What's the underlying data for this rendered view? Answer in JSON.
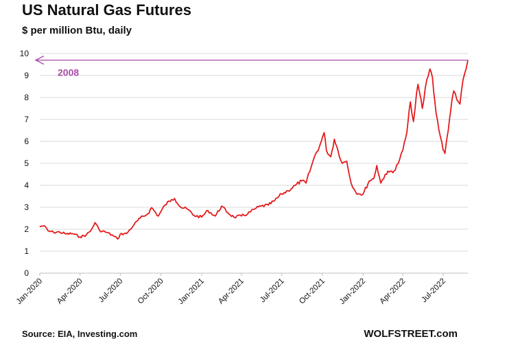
{
  "chart_data": {
    "type": "line",
    "title": "US Natural Gas Futures",
    "subtitle": "$ per million Btu, daily",
    "ylim": [
      0,
      10
    ],
    "y_ticks": [
      0,
      1,
      2,
      3,
      4,
      5,
      6,
      7,
      8,
      9,
      10
    ],
    "x_range": [
      "2020-01-01",
      "2022-08-26"
    ],
    "x_tick_labels": [
      "Jan-2020",
      "Apr-2020",
      "Jul-2020",
      "Oct-2020",
      "Jan-2021",
      "Apr-2021",
      "Jul-2021",
      "Oct-2021",
      "Jan-2022",
      "Apr-2022",
      "Jul-2022"
    ],
    "grid": true,
    "line_color": "#e41a1c",
    "reference": {
      "label": "2008",
      "value": 9.7,
      "color": "#a64ca6"
    },
    "series": [
      {
        "values": [
          [
            "2020-01-01",
            2.12
          ],
          [
            "2020-01-10",
            2.16
          ],
          [
            "2020-01-20",
            1.92
          ],
          [
            "2020-02-01",
            1.86
          ],
          [
            "2020-02-15",
            1.87
          ],
          [
            "2020-03-01",
            1.78
          ],
          [
            "2020-03-15",
            1.8
          ],
          [
            "2020-04-01",
            1.65
          ],
          [
            "2020-04-15",
            1.74
          ],
          [
            "2020-04-25",
            1.92
          ],
          [
            "2020-05-05",
            2.3
          ],
          [
            "2020-05-15",
            1.95
          ],
          [
            "2020-06-01",
            1.85
          ],
          [
            "2020-06-15",
            1.7
          ],
          [
            "2020-06-25",
            1.55
          ],
          [
            "2020-07-01",
            1.78
          ],
          [
            "2020-07-15",
            1.8
          ],
          [
            "2020-08-01",
            2.2
          ],
          [
            "2020-08-15",
            2.5
          ],
          [
            "2020-09-01",
            2.7
          ],
          [
            "2020-09-10",
            2.98
          ],
          [
            "2020-09-25",
            2.6
          ],
          [
            "2020-10-10",
            3.1
          ],
          [
            "2020-10-25",
            3.35
          ],
          [
            "2020-11-01",
            3.4
          ],
          [
            "2020-11-15",
            3.0
          ],
          [
            "2020-12-01",
            2.9
          ],
          [
            "2020-12-15",
            2.62
          ],
          [
            "2021-01-01",
            2.55
          ],
          [
            "2021-01-15",
            2.85
          ],
          [
            "2021-02-01",
            2.6
          ],
          [
            "2021-02-15",
            3.05
          ],
          [
            "2021-03-01",
            2.75
          ],
          [
            "2021-03-15",
            2.55
          ],
          [
            "2021-04-01",
            2.6
          ],
          [
            "2021-04-15",
            2.7
          ],
          [
            "2021-05-01",
            2.92
          ],
          [
            "2021-05-15",
            3.05
          ],
          [
            "2021-06-01",
            3.1
          ],
          [
            "2021-06-15",
            3.3
          ],
          [
            "2021-07-01",
            3.6
          ],
          [
            "2021-07-15",
            3.75
          ],
          [
            "2021-08-01",
            4.0
          ],
          [
            "2021-08-15",
            4.2
          ],
          [
            "2021-08-25",
            4.1
          ],
          [
            "2021-09-05",
            4.8
          ],
          [
            "2021-09-15",
            5.4
          ],
          [
            "2021-09-25",
            5.8
          ],
          [
            "2021-10-05",
            6.4
          ],
          [
            "2021-10-10",
            5.6
          ],
          [
            "2021-10-20",
            5.3
          ],
          [
            "2021-10-28",
            6.1
          ],
          [
            "2021-11-05",
            5.6
          ],
          [
            "2021-11-15",
            5.0
          ],
          [
            "2021-11-25",
            5.1
          ],
          [
            "2021-12-05",
            4.1
          ],
          [
            "2021-12-15",
            3.7
          ],
          [
            "2021-12-25",
            3.6
          ],
          [
            "2022-01-01",
            3.6
          ],
          [
            "2022-01-15",
            4.2
          ],
          [
            "2022-01-25",
            4.3
          ],
          [
            "2022-02-01",
            4.9
          ],
          [
            "2022-02-10",
            4.1
          ],
          [
            "2022-02-20",
            4.5
          ],
          [
            "2022-03-01",
            4.6
          ],
          [
            "2022-03-15",
            4.7
          ],
          [
            "2022-03-25",
            5.2
          ],
          [
            "2022-04-01",
            5.6
          ],
          [
            "2022-04-10",
            6.4
          ],
          [
            "2022-04-18",
            7.8
          ],
          [
            "2022-04-25",
            6.9
          ],
          [
            "2022-05-05",
            8.6
          ],
          [
            "2022-05-15",
            7.5
          ],
          [
            "2022-05-25",
            8.8
          ],
          [
            "2022-06-01",
            9.3
          ],
          [
            "2022-06-07",
            8.9
          ],
          [
            "2022-06-15",
            7.3
          ],
          [
            "2022-06-25",
            6.2
          ],
          [
            "2022-07-01",
            5.6
          ],
          [
            "2022-07-05",
            5.45
          ],
          [
            "2022-07-10",
            6.2
          ],
          [
            "2022-07-18",
            7.4
          ],
          [
            "2022-07-25",
            8.3
          ],
          [
            "2022-08-01",
            7.9
          ],
          [
            "2022-08-08",
            7.7
          ],
          [
            "2022-08-15",
            8.8
          ],
          [
            "2022-08-22",
            9.3
          ],
          [
            "2022-08-26",
            9.7
          ]
        ]
      }
    ]
  },
  "footer": {
    "source": "Source: EIA, Investing.com",
    "brand": "WOLFSTREET.com"
  },
  "colors": {
    "line": "#e41a1c",
    "reference": "#a64ca6",
    "grid": "#d9d9d9",
    "text": "#111111"
  }
}
